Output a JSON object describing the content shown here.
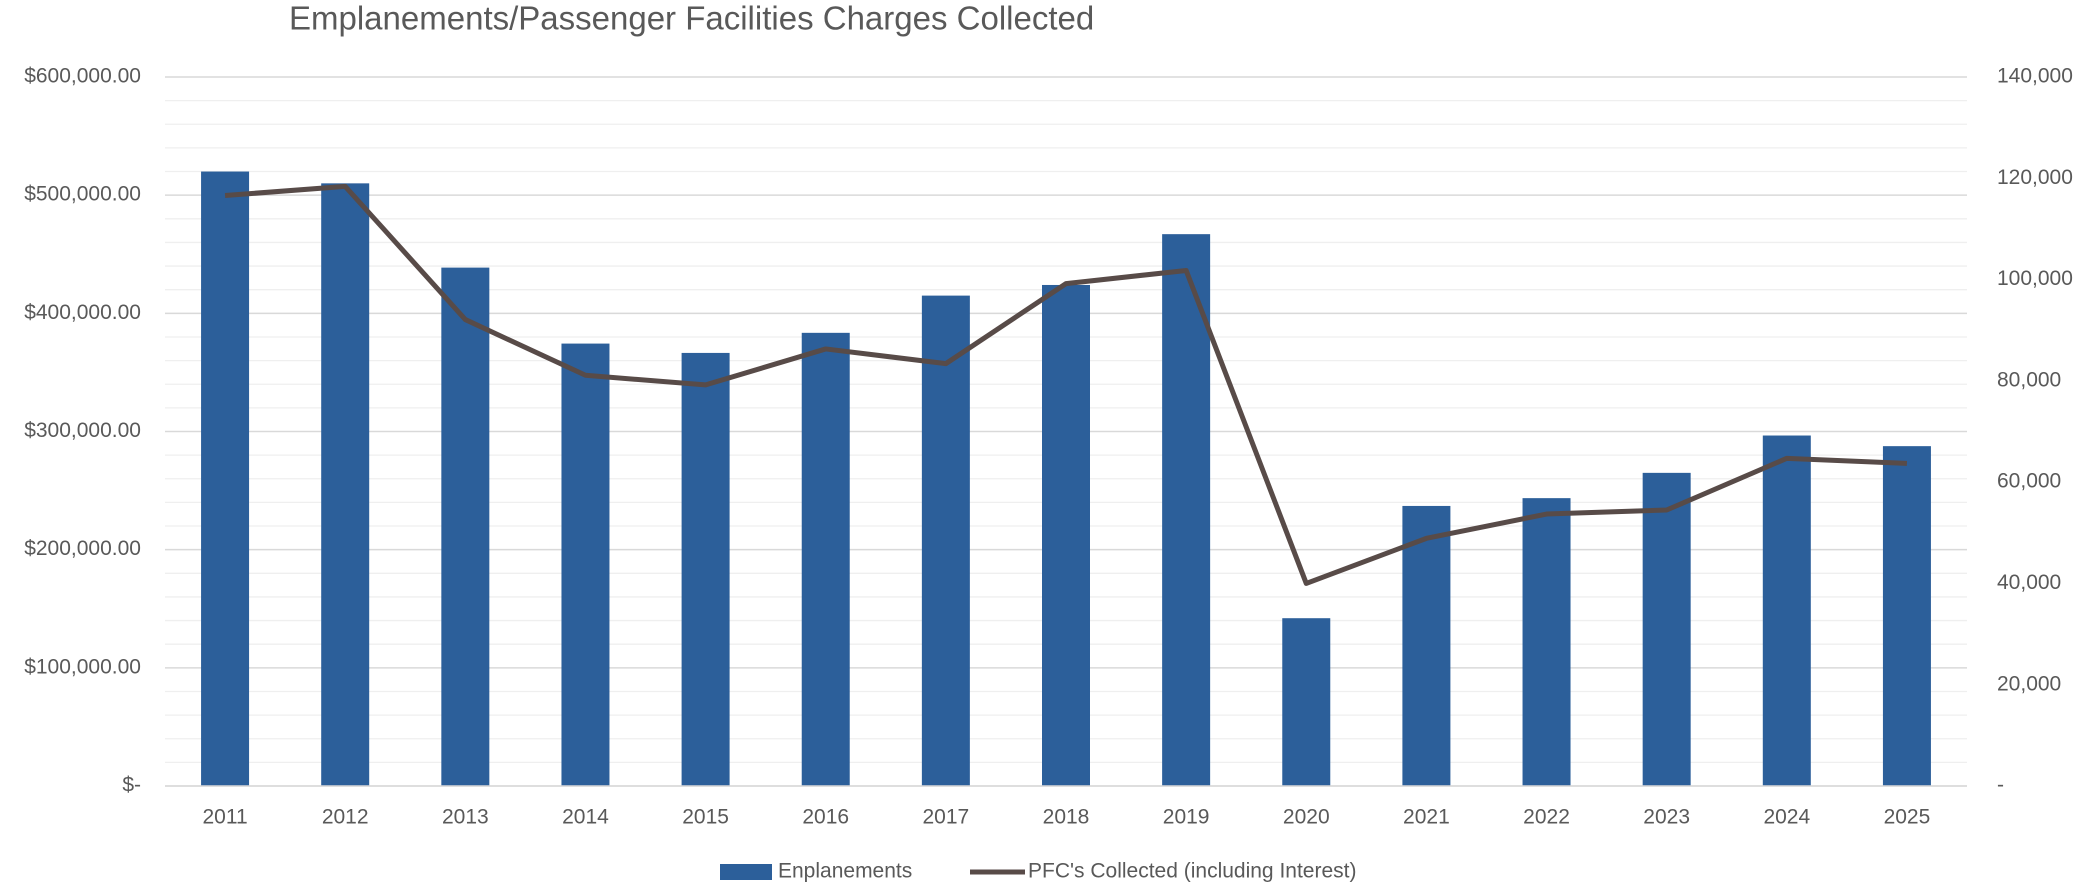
{
  "chart_data": {
    "type": "bar_line",
    "title": "Emplanements/Passenger Facilities Charges Collected",
    "categories": [
      "2011",
      "2012",
      "2013",
      "2014",
      "2015",
      "2016",
      "2017",
      "2018",
      "2019",
      "2020",
      "2021",
      "2022",
      "2023",
      "2024",
      "2025"
    ],
    "series": [
      {
        "name": "Enplanements",
        "type": "bar",
        "color": "#2c5f9a",
        "values": [
          520000,
          510000,
          438700,
          374400,
          366500,
          383500,
          415000,
          424000,
          467000,
          142000,
          237000,
          243600,
          265000,
          296600,
          287600
        ]
      },
      {
        "name": "PFC's Collected (including Interest)",
        "type": "line",
        "axis": "y2",
        "color": "#584b48",
        "values": [
          116600,
          118400,
          92100,
          81100,
          79200,
          86300,
          83400,
          99200,
          101800,
          40000,
          48900,
          53700,
          54500,
          64700,
          63700
        ]
      }
    ],
    "ylim": [
      0,
      600000
    ],
    "yticks": [
      {
        "value": 0,
        "label": "$-"
      },
      {
        "value": 100000,
        "label": "$100,000.00"
      },
      {
        "value": 200000,
        "label": "$200,000.00"
      },
      {
        "value": 300000,
        "label": "$300,000.00"
      },
      {
        "value": 400000,
        "label": "$400,000.00"
      },
      {
        "value": 500000,
        "label": "$500,000.00"
      },
      {
        "value": 600000,
        "label": "$600,000.00"
      }
    ],
    "y2lim": [
      0,
      140000
    ],
    "y2ticks": [
      {
        "value": 0,
        "label": "-"
      },
      {
        "value": 20000,
        "label": "20,000"
      },
      {
        "value": 40000,
        "label": "40,000"
      },
      {
        "value": 60000,
        "label": "60,000"
      },
      {
        "value": 80000,
        "label": "80,000"
      },
      {
        "value": 100000,
        "label": "100,000"
      },
      {
        "value": 120000,
        "label": "120,000"
      },
      {
        "value": 140000,
        "label": "140,000"
      }
    ],
    "grid": true,
    "minor_grid": true,
    "legend": "bottom"
  }
}
